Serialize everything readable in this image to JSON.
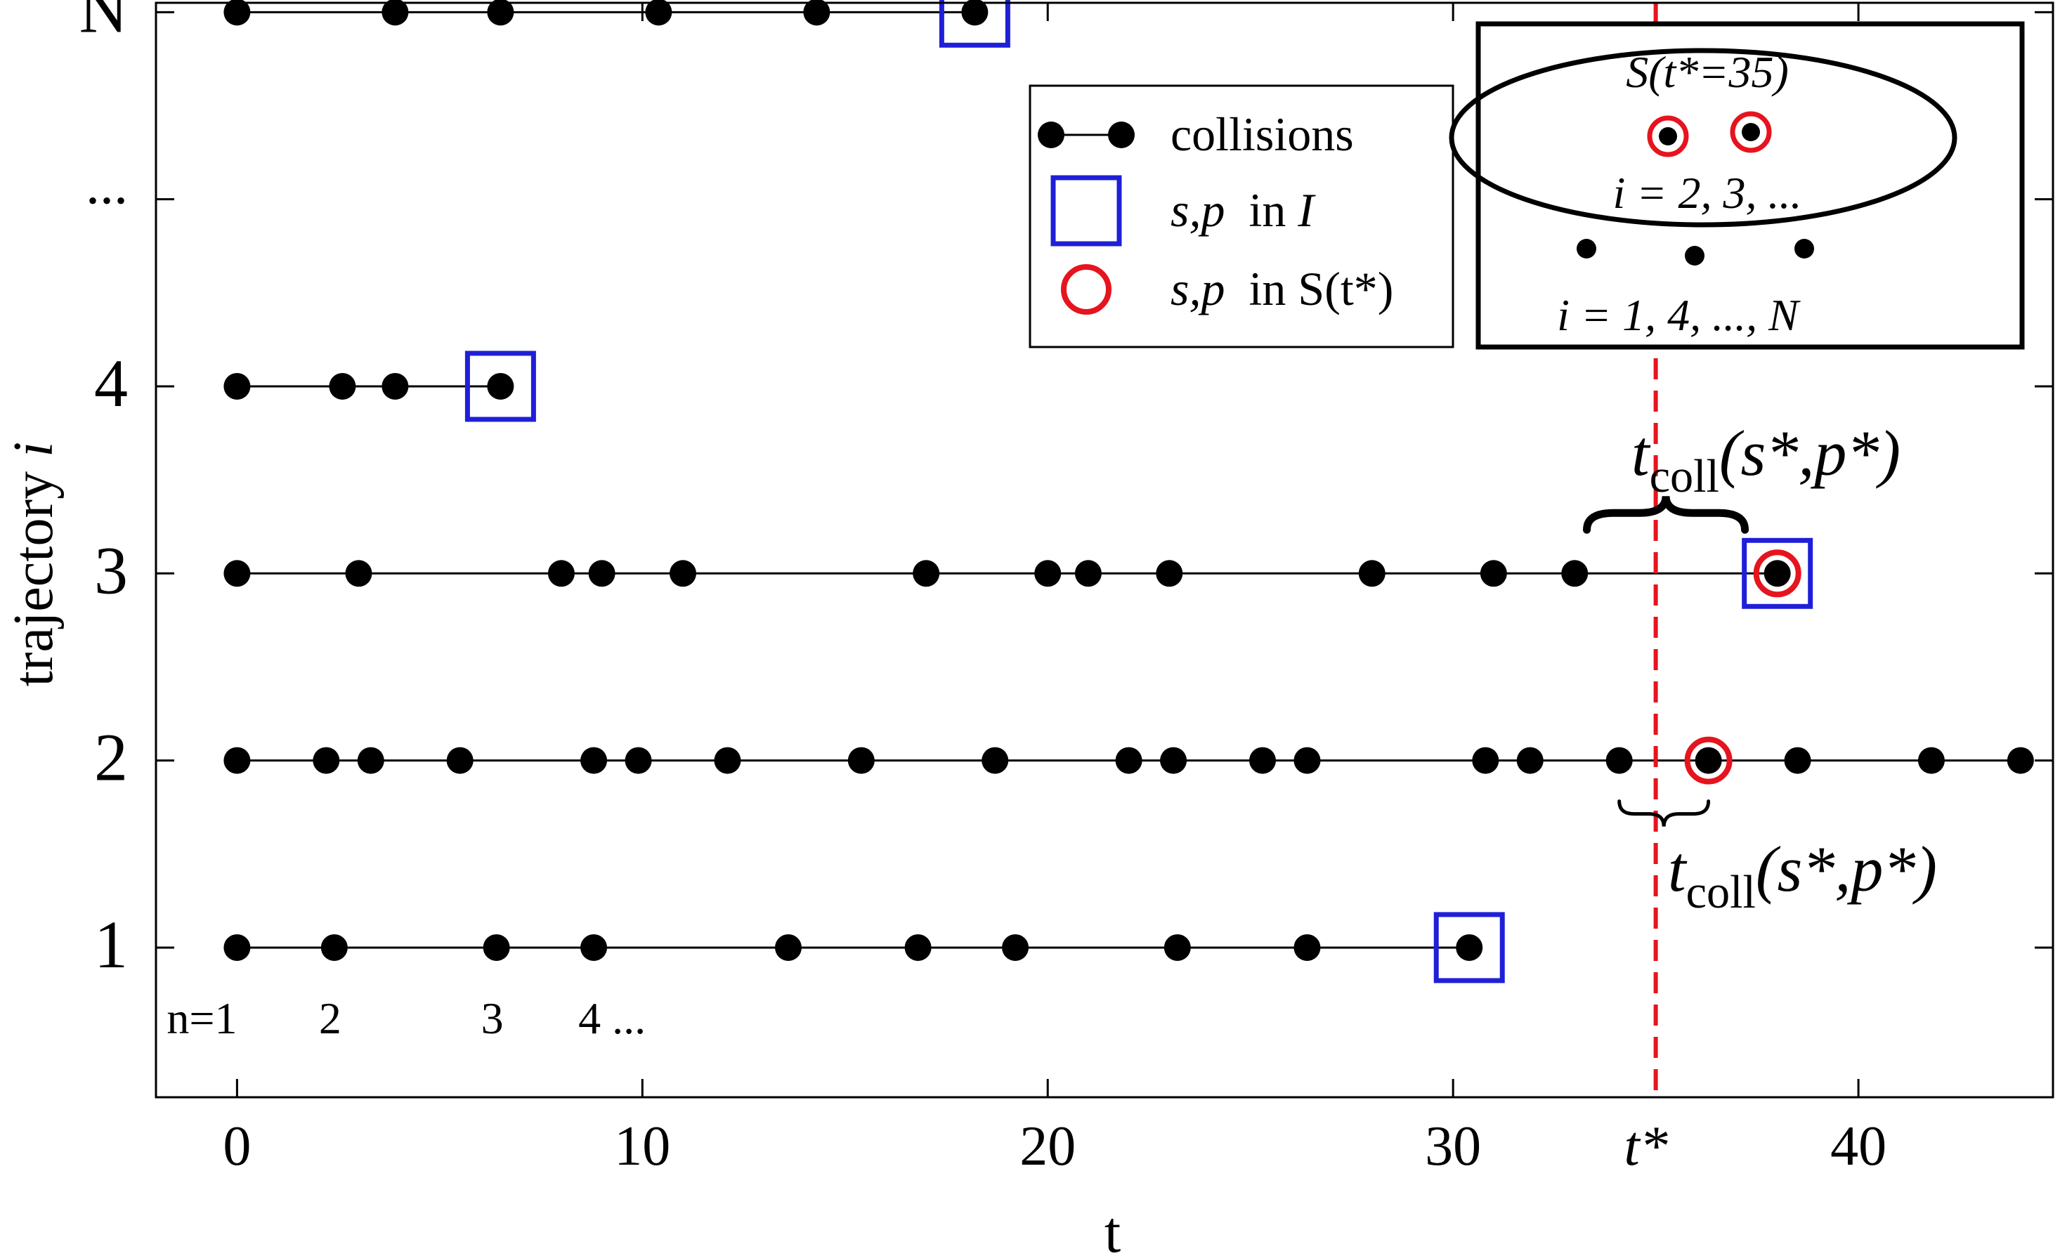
{
  "chart_data": {
    "type": "scatter",
    "xlabel": "t",
    "ylabel": "trajectory",
    "ylabel_italic_suffix": "i",
    "xlim": [
      -2,
      44.8
    ],
    "ylim": [
      -0.8,
      5.05
    ],
    "x_ticks": [
      {
        "value": 0,
        "label": "0"
      },
      {
        "value": 10,
        "label": "10"
      },
      {
        "value": 20,
        "label": "20"
      },
      {
        "value": 30,
        "label": "30"
      },
      {
        "value": 40,
        "label": "40"
      }
    ],
    "x_special_tick": {
      "value": 35,
      "label": "t*"
    },
    "y_ticks": [
      {
        "value": 0,
        "label": "1"
      },
      {
        "value": 1,
        "label": "2"
      },
      {
        "value": 2,
        "label": "3"
      },
      {
        "value": 3,
        "label": "4"
      },
      {
        "value": 4,
        "label": "..."
      },
      {
        "value": 5,
        "label": "N"
      }
    ],
    "t_star": 35,
    "trajectories": [
      {
        "row": 0,
        "collisions": [
          0,
          2.4,
          6.4,
          8.8,
          13.6,
          16.8,
          19.2,
          23.2,
          26.4,
          30.4
        ],
        "square_at": 30.4
      },
      {
        "row": 1,
        "collisions": [
          0,
          2.2,
          3.3,
          5.5,
          8.8,
          9.9,
          12.1,
          15.4,
          18.7,
          22.0,
          23.1,
          25.3,
          26.4,
          30.8,
          31.9,
          34.1,
          36.3,
          38.5,
          41.8,
          44.0
        ],
        "circle_at": 36.3
      },
      {
        "row": 2,
        "collisions": [
          0,
          3,
          8,
          9,
          11,
          17,
          20,
          21,
          23,
          28,
          31,
          33,
          38
        ],
        "square_at": 38,
        "circle_at": 38
      },
      {
        "row": 3,
        "collisions": [
          0,
          2.6,
          3.9,
          6.5
        ],
        "square_at": 6.5
      },
      {
        "row": 5,
        "collisions": [
          0,
          3.9,
          6.5,
          10.4,
          14.3,
          18.2
        ],
        "square_at": 18.2
      }
    ],
    "collision_index_labels": [
      {
        "x": 0,
        "label": "n=1"
      },
      {
        "x": 2.4,
        "label": "2"
      },
      {
        "x": 6.4,
        "label": "3"
      },
      {
        "x": 8.8,
        "label": "4 ..."
      }
    ],
    "annotations": {
      "brace_upper": {
        "x_from": 33.3,
        "x_to": 37.2,
        "row": 2,
        "text_main": "t",
        "text_sub": "coll",
        "text_args": "(s*,p*)"
      },
      "brace_lower": {
        "x_from": 34.1,
        "x_to": 36.3,
        "row": 1,
        "text_main": "t",
        "text_sub": "coll",
        "text_args": "(s*,p*)"
      }
    },
    "legend": {
      "placement": "top-center",
      "entries": [
        {
          "marker": "dot-line",
          "label": "collisions"
        },
        {
          "marker": "square",
          "label_italic": "s,p",
          "label_mid": "in",
          "label_tail": "I"
        },
        {
          "marker": "circle",
          "label_italic": "s,p",
          "label_mid": "in",
          "label_tail": "S(t*)"
        }
      ]
    },
    "inset": {
      "placement": "top-right",
      "ellipse_title": "S(t*=35)",
      "ellipse_label": "i = 2, 3, ...",
      "outside_label": "i = 1, 4, ..., N"
    },
    "colors": {
      "dot": "#000000",
      "square": "#1f1fd8",
      "circle": "#e6141e",
      "t_star_line": "#e6141e",
      "axis": "#000000"
    }
  }
}
